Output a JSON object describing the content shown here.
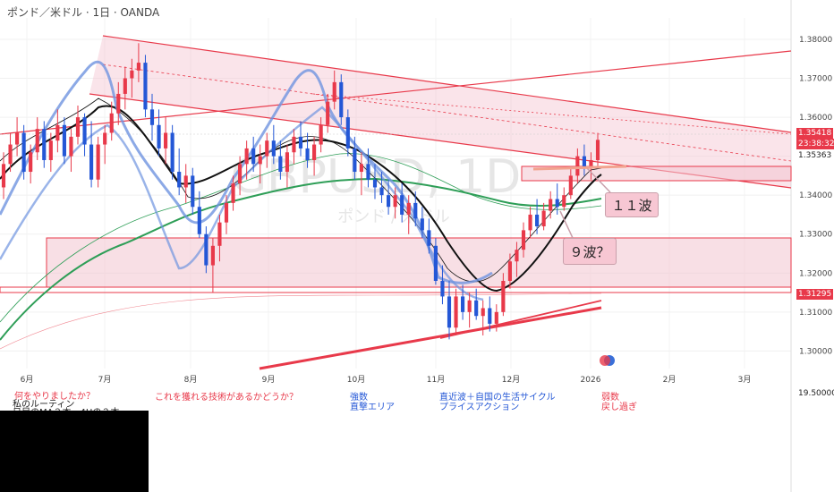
{
  "header": {
    "title": "ポンド／米ドル · 1日 · OANDA"
  },
  "watermark": {
    "symbol": "GBPUSD, 1D",
    "name": "ポンド / 米ドル"
  },
  "chart_data": {
    "type": "candlestick",
    "y_ticks": [
      "1.38000",
      "1.37000",
      "1.36000",
      "1.35000",
      "1.34000",
      "1.33000",
      "1.32000",
      "1.31000",
      "1.30000"
    ],
    "ylim": [
      1.2955,
      1.3855
    ],
    "x_ticks": [
      "6月",
      "7月",
      "8月",
      "9月",
      "10月",
      "11月",
      "12月",
      "2026",
      "2月",
      "3月"
    ],
    "price_labels": {
      "last": "1.35418",
      "countdown": "23:38:32",
      "level_a": "1.35363",
      "level_b": "1.31295"
    },
    "oscillator_value": "19.50000",
    "colors": {
      "up": "#e8394a",
      "down": "#2457d6",
      "box": "#f3c4d0",
      "line": "#e8394a"
    },
    "ohlc": [
      [
        1.342,
        1.351,
        1.339,
        1.348
      ],
      [
        1.348,
        1.356,
        1.346,
        1.353
      ],
      [
        1.353,
        1.36,
        1.35,
        1.356
      ],
      [
        1.356,
        1.358,
        1.344,
        1.346
      ],
      [
        1.346,
        1.353,
        1.343,
        1.351
      ],
      [
        1.351,
        1.36,
        1.349,
        1.357
      ],
      [
        1.357,
        1.359,
        1.347,
        1.349
      ],
      [
        1.349,
        1.356,
        1.346,
        1.354
      ],
      [
        1.354,
        1.362,
        1.351,
        1.358
      ],
      [
        1.358,
        1.36,
        1.348,
        1.35
      ],
      [
        1.35,
        1.357,
        1.346,
        1.355
      ],
      [
        1.355,
        1.363,
        1.353,
        1.36
      ],
      [
        1.36,
        1.361,
        1.35,
        1.353
      ],
      [
        1.353,
        1.359,
        1.342,
        1.344
      ],
      [
        1.344,
        1.355,
        1.342,
        1.353
      ],
      [
        1.353,
        1.358,
        1.348,
        1.356
      ],
      [
        1.356,
        1.364,
        1.354,
        1.361
      ],
      [
        1.361,
        1.369,
        1.358,
        1.366
      ],
      [
        1.366,
        1.373,
        1.362,
        1.37
      ],
      [
        1.37,
        1.375,
        1.365,
        1.372
      ],
      [
        1.372,
        1.379,
        1.369,
        1.374
      ],
      [
        1.374,
        1.376,
        1.36,
        1.362
      ],
      [
        1.362,
        1.366,
        1.354,
        1.358
      ],
      [
        1.358,
        1.362,
        1.35,
        1.352
      ],
      [
        1.352,
        1.36,
        1.348,
        1.356
      ],
      [
        1.356,
        1.358,
        1.344,
        1.346
      ],
      [
        1.346,
        1.352,
        1.34,
        1.342
      ],
      [
        1.342,
        1.348,
        1.338,
        1.345
      ],
      [
        1.345,
        1.347,
        1.335,
        1.337
      ],
      [
        1.337,
        1.341,
        1.329,
        1.33
      ],
      [
        1.33,
        1.332,
        1.32,
        1.322
      ],
      [
        1.322,
        1.329,
        1.315,
        1.327
      ],
      [
        1.327,
        1.335,
        1.323,
        1.333
      ],
      [
        1.333,
        1.34,
        1.33,
        1.338
      ],
      [
        1.338,
        1.345,
        1.336,
        1.343
      ],
      [
        1.343,
        1.35,
        1.34,
        1.348
      ],
      [
        1.348,
        1.354,
        1.344,
        1.352
      ],
      [
        1.352,
        1.355,
        1.346,
        1.348
      ],
      [
        1.348,
        1.353,
        1.343,
        1.35
      ],
      [
        1.35,
        1.356,
        1.347,
        1.354
      ],
      [
        1.354,
        1.358,
        1.348,
        1.35
      ],
      [
        1.35,
        1.354,
        1.344,
        1.346
      ],
      [
        1.346,
        1.353,
        1.342,
        1.351
      ],
      [
        1.351,
        1.357,
        1.348,
        1.355
      ],
      [
        1.355,
        1.359,
        1.35,
        1.352
      ],
      [
        1.352,
        1.356,
        1.347,
        1.349
      ],
      [
        1.349,
        1.355,
        1.345,
        1.353
      ],
      [
        1.353,
        1.36,
        1.351,
        1.358
      ],
      [
        1.358,
        1.366,
        1.356,
        1.364
      ],
      [
        1.364,
        1.372,
        1.362,
        1.369
      ],
      [
        1.369,
        1.371,
        1.358,
        1.36
      ],
      [
        1.36,
        1.362,
        1.35,
        1.352
      ],
      [
        1.352,
        1.355,
        1.344,
        1.346
      ],
      [
        1.346,
        1.351,
        1.34,
        1.348
      ],
      [
        1.348,
        1.352,
        1.342,
        1.344
      ],
      [
        1.344,
        1.348,
        1.339,
        1.342
      ],
      [
        1.342,
        1.346,
        1.338,
        1.34
      ],
      [
        1.34,
        1.344,
        1.335,
        1.337
      ],
      [
        1.337,
        1.342,
        1.334,
        1.34
      ],
      [
        1.34,
        1.343,
        1.333,
        1.335
      ],
      [
        1.335,
        1.34,
        1.33,
        1.338
      ],
      [
        1.338,
        1.341,
        1.332,
        1.334
      ],
      [
        1.334,
        1.337,
        1.329,
        1.331
      ],
      [
        1.331,
        1.334,
        1.325,
        1.327
      ],
      [
        1.327,
        1.329,
        1.317,
        1.318
      ],
      [
        1.318,
        1.322,
        1.312,
        1.314
      ],
      [
        1.314,
        1.318,
        1.303,
        1.306
      ],
      [
        1.306,
        1.316,
        1.304,
        1.314
      ],
      [
        1.314,
        1.317,
        1.308,
        1.31
      ],
      [
        1.31,
        1.315,
        1.306,
        1.313
      ],
      [
        1.313,
        1.316,
        1.308,
        1.309
      ],
      [
        1.309,
        1.313,
        1.304,
        1.311
      ],
      [
        1.311,
        1.314,
        1.305,
        1.307
      ],
      [
        1.307,
        1.312,
        1.305,
        1.31
      ],
      [
        1.31,
        1.32,
        1.309,
        1.318
      ],
      [
        1.318,
        1.325,
        1.316,
        1.323
      ],
      [
        1.323,
        1.328,
        1.319,
        1.326
      ],
      [
        1.326,
        1.333,
        1.324,
        1.331
      ],
      [
        1.331,
        1.337,
        1.329,
        1.335
      ],
      [
        1.335,
        1.339,
        1.33,
        1.332
      ],
      [
        1.332,
        1.338,
        1.331,
        1.336
      ],
      [
        1.336,
        1.341,
        1.334,
        1.339
      ],
      [
        1.339,
        1.343,
        1.335,
        1.337
      ],
      [
        1.337,
        1.342,
        1.336,
        1.34
      ],
      [
        1.34,
        1.347,
        1.339,
        1.345
      ],
      [
        1.345,
        1.352,
        1.343,
        1.35
      ],
      [
        1.35,
        1.353,
        1.345,
        1.347
      ],
      [
        1.347,
        1.351,
        1.344,
        1.349
      ],
      [
        1.349,
        1.356,
        1.347,
        1.3542
      ]
    ]
  },
  "annotations": {
    "wave11": "１１波",
    "wave9": "９波？"
  },
  "notes": {
    "left1": "何をやりましたか？",
    "left2": "私のルーティン",
    "left3": "日足のMA２本　4Hの２本",
    "mid1": "これを獲れる技術があるかどうか？",
    "blue1": "強数",
    "blue2": "直撃エリア",
    "blue3": "直近波＋自国の生活サイクル",
    "blue4": "プライスアクション",
    "red1": "弱数",
    "red2": "戻し過ぎ"
  }
}
